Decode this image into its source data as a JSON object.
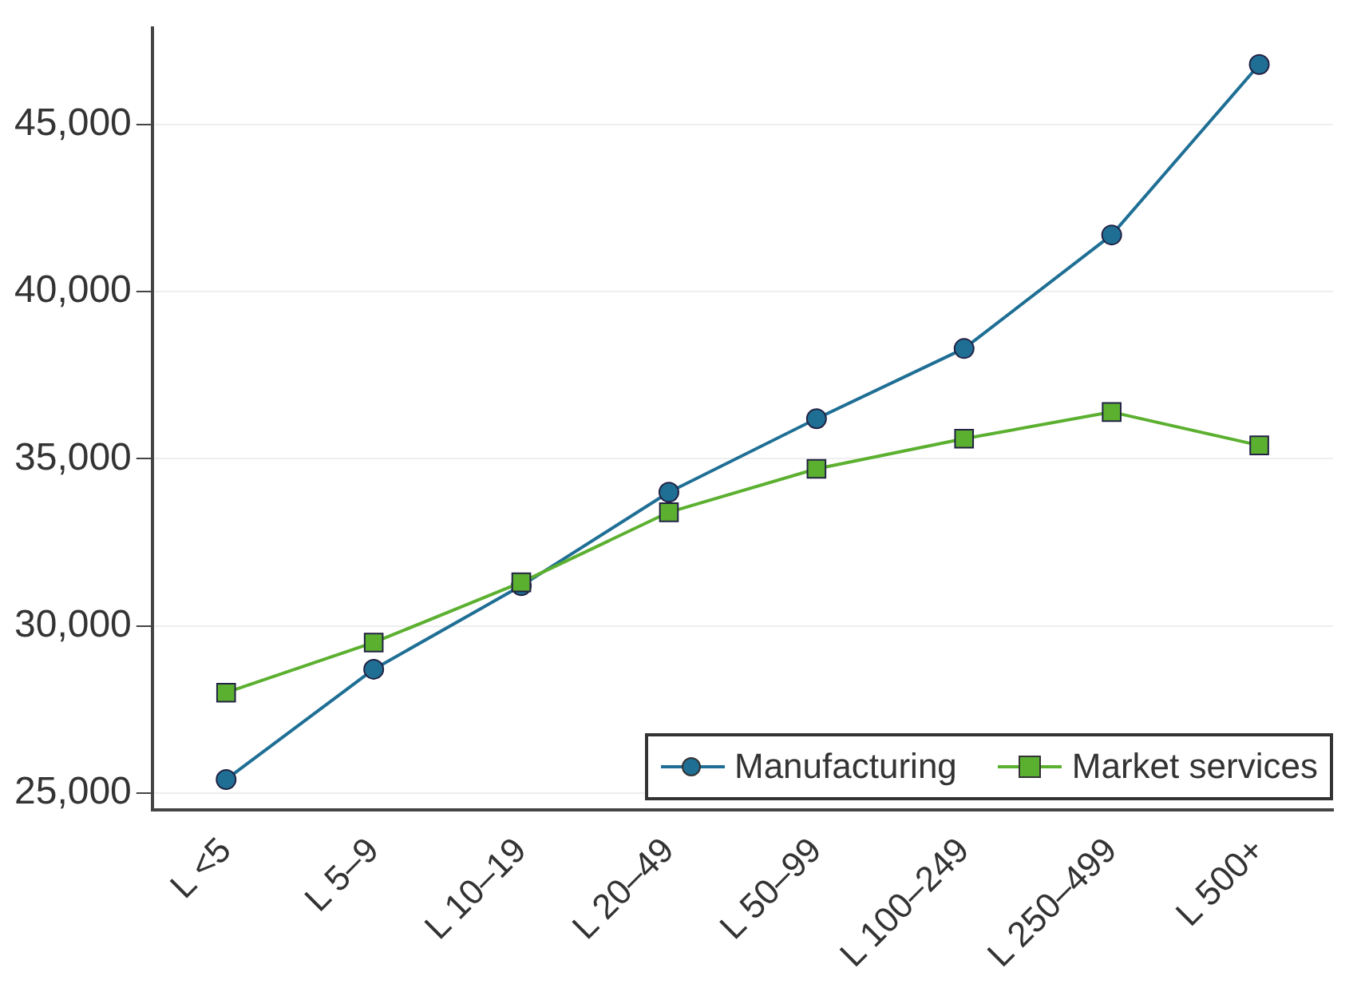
{
  "chart_data": {
    "type": "line",
    "categories": [
      "L <5",
      "L 5–9",
      "L 10–19",
      "L 20–49",
      "L 50–99",
      "L 100–249",
      "L 250–499",
      "L 500+"
    ],
    "series": [
      {
        "name": "Manufacturing",
        "color": "#1f6f95",
        "marker": "circle",
        "values": [
          25400,
          28700,
          31200,
          34000,
          36200,
          38300,
          41700,
          46800
        ]
      },
      {
        "name": "Market services",
        "color": "#5cb030",
        "marker": "square",
        "values": [
          28000,
          29500,
          31300,
          33400,
          34700,
          35600,
          36400,
          35400
        ]
      }
    ],
    "ylim": [
      24500,
      47900
    ],
    "yticks": [
      {
        "value": 25000,
        "label": "25,000"
      },
      {
        "value": 30000,
        "label": "30,000"
      },
      {
        "value": 35000,
        "label": "35,000"
      },
      {
        "value": 40000,
        "label": "40,000"
      },
      {
        "value": 45000,
        "label": "45,000"
      }
    ],
    "grid": "y",
    "legend": "bottom right",
    "line_style": "solid"
  }
}
